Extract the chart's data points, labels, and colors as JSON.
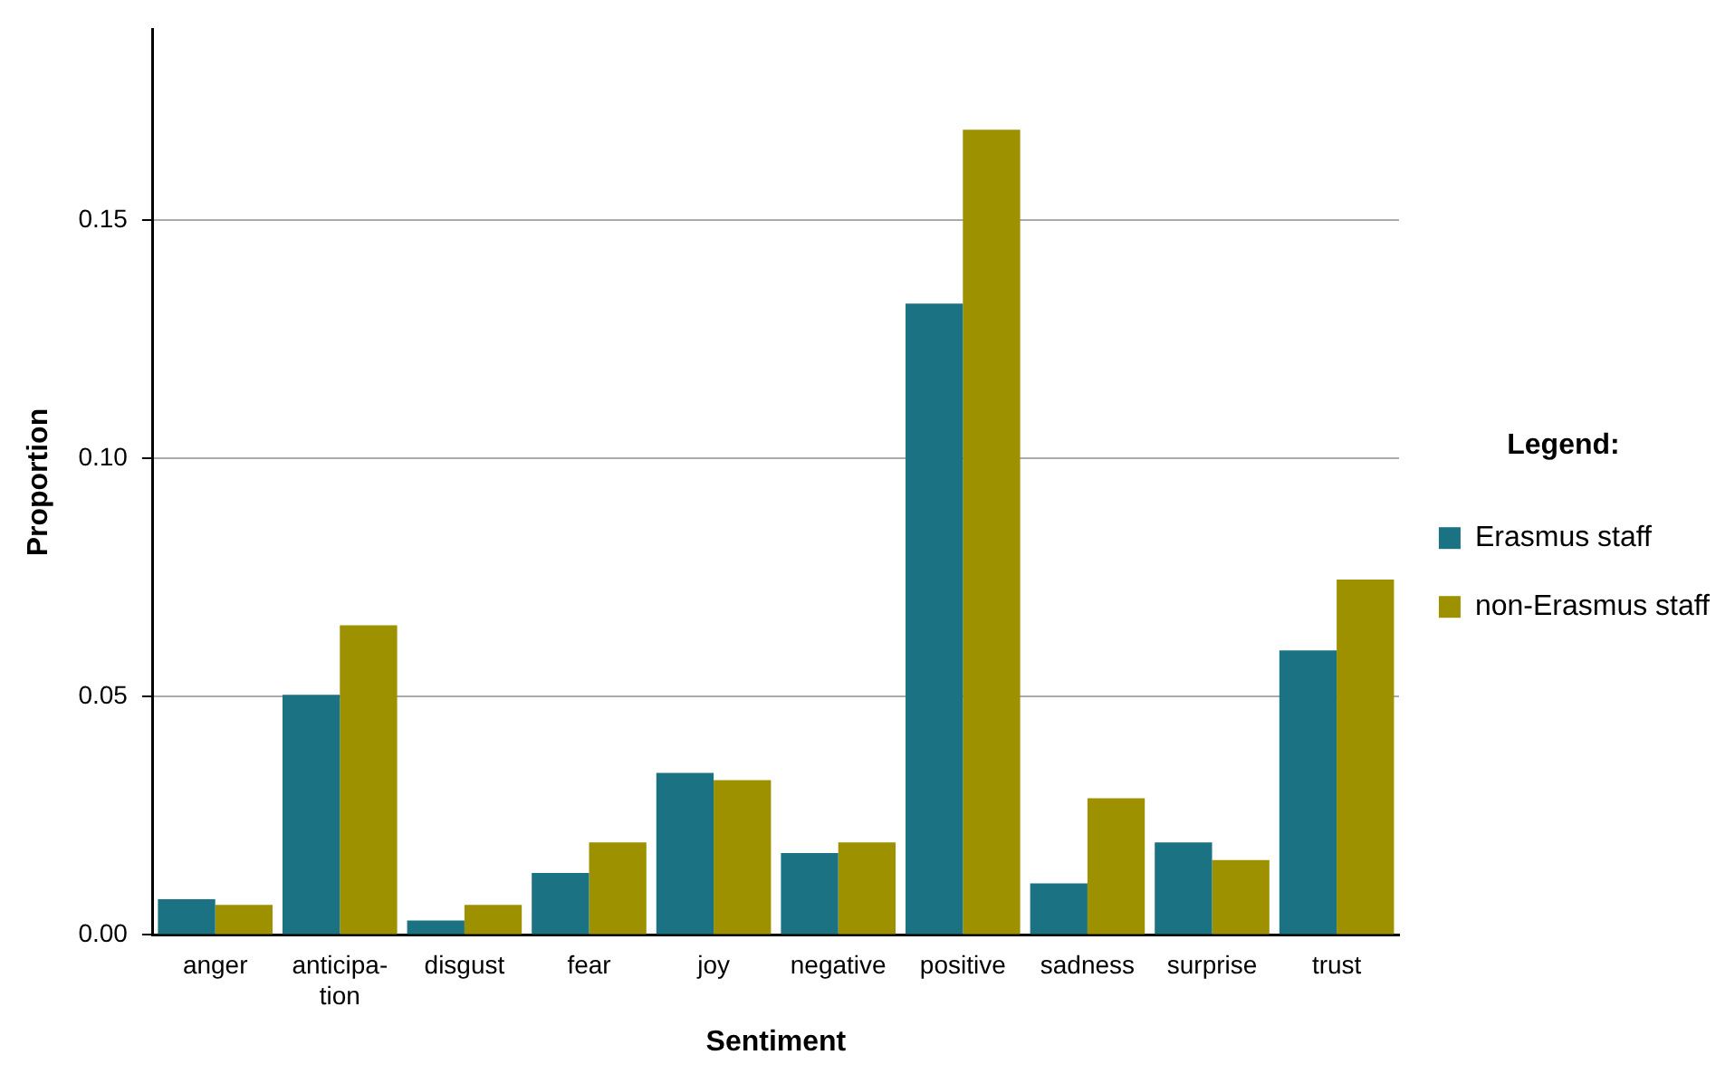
{
  "chart_data": {
    "type": "bar",
    "xlabel": "Sentiment",
    "ylabel": "Proportion",
    "legend_title": "Legend:",
    "categories": [
      "anger",
      "anticipa-\ntion",
      "disgust",
      "fear",
      "joy",
      "negative",
      "positive",
      "sadness",
      "surprise",
      "trust"
    ],
    "series": [
      {
        "name": "Erasmus staff",
        "color": "#1a7282",
        "values": [
          0.0075,
          0.0504,
          0.003,
          0.013,
          0.034,
          0.0172,
          0.1325,
          0.0108,
          0.0194,
          0.0597
        ]
      },
      {
        "name": "non-Erasmus staff",
        "color": "#9e9100",
        "values": [
          0.0063,
          0.065,
          0.0063,
          0.0194,
          0.0325,
          0.0194,
          0.169,
          0.0287,
          0.0157,
          0.0746
        ]
      }
    ],
    "ylim": [
      0,
      0.19
    ],
    "yticks": [
      {
        "value": 0,
        "label": "0.00"
      },
      {
        "value": 0.05,
        "label": "0.05"
      },
      {
        "value": 0.1,
        "label": "0.10"
      },
      {
        "value": 0.15,
        "label": "0.15"
      }
    ],
    "grid": "y",
    "legend": "right"
  }
}
